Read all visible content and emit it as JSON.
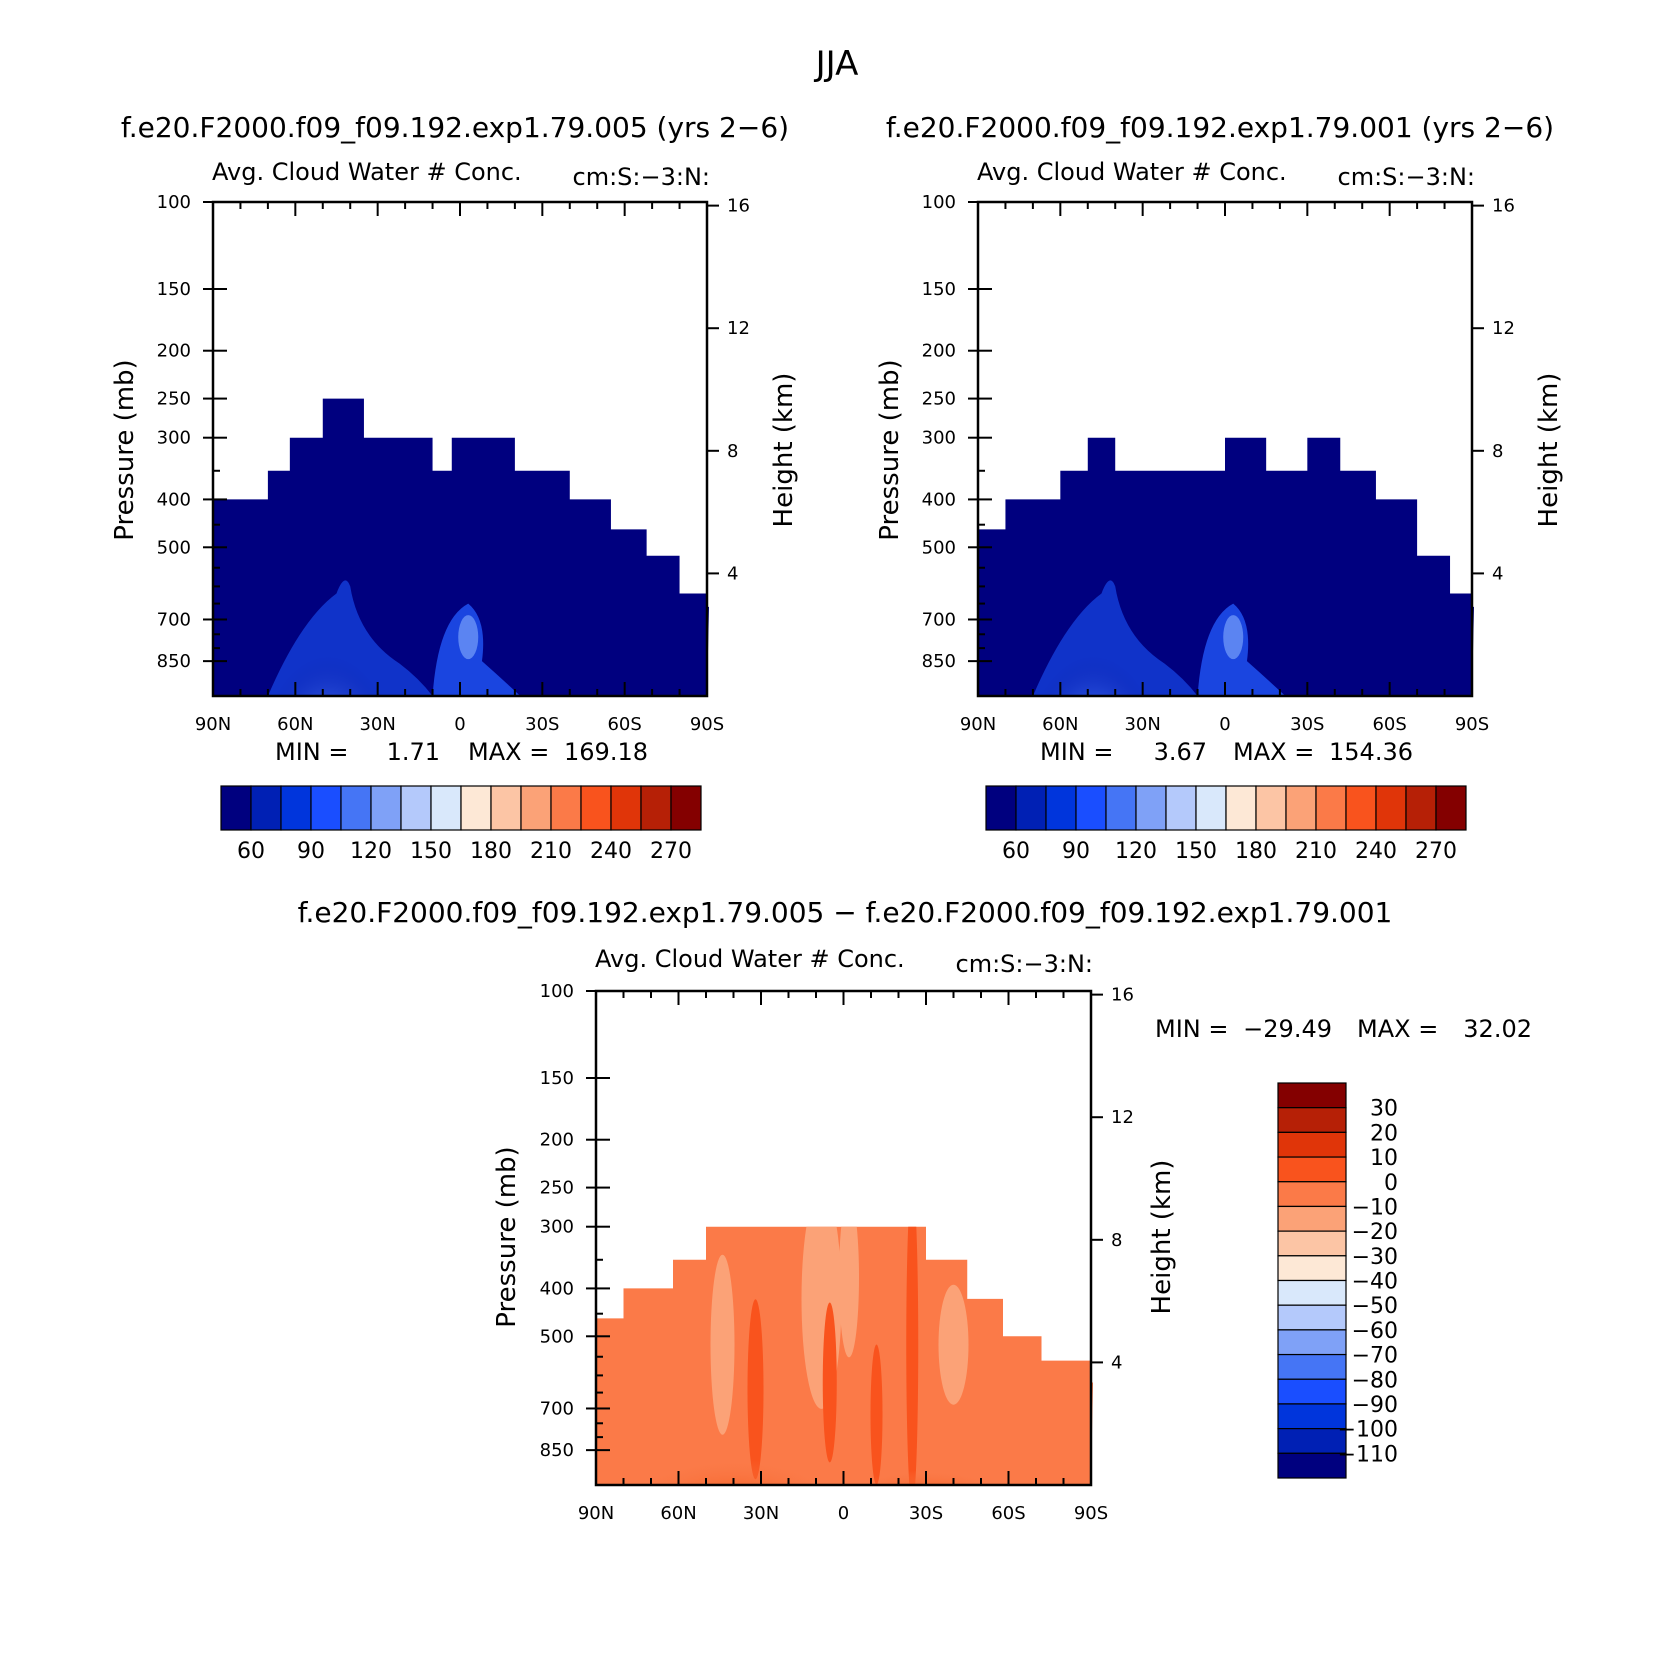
{
  "title": "JJA",
  "colors": {
    "seq": [
      "#00007f",
      "#0020b4",
      "#0035dc",
      "#1a4eff",
      "#4575f5",
      "#7fa1f7",
      "#b4c9fb",
      "#d9e8fb",
      "#fde8d6",
      "#fcc5a5",
      "#fba277",
      "#fb7a48",
      "#f9531d",
      "#e03509",
      "#b62006",
      "#840000"
    ],
    "diff": [
      "#00007f",
      "#0020b4",
      "#0035dc",
      "#1a4eff",
      "#4575f5",
      "#7fa1f7",
      "#b4c9fb",
      "#d9e8fb",
      "#fde8d6",
      "#fcc5a5",
      "#fba277",
      "#fb7a48",
      "#f9531d",
      "#e03509",
      "#b62006",
      "#840000"
    ]
  },
  "chart_data": [
    {
      "type": "heatmap",
      "panel_title": "f.e20.F2000.f09_f09.192.exp1.79.005 (yrs 2−6)",
      "left_label": "Avg. Cloud Water # Conc.",
      "right_label": "cm:S:−3:N:",
      "xlabel": "",
      "ylabel": "Pressure (mb)",
      "y2label": "Height (km)",
      "x_ticks": [
        "90N",
        "60N",
        "30N",
        "0",
        "30S",
        "60S",
        "90S"
      ],
      "y_ticks": [
        "100",
        "150",
        "200",
        "250",
        "300",
        "400",
        "500",
        "700",
        "850"
      ],
      "y2_ticks": [
        "16",
        "12",
        "8",
        "4"
      ],
      "min_label": "MIN =",
      "min_value": "1.71",
      "max_label": "MAX =",
      "max_value": "169.18",
      "colorbar_labels": [
        "60",
        "90",
        "120",
        "150",
        "180",
        "210",
        "240",
        "270"
      ],
      "data_top_pressure_by_lat": [
        {
          "lat": 90,
          "p": 400
        },
        {
          "lat": 75,
          "p": 400
        },
        {
          "lat": 70,
          "p": 350
        },
        {
          "lat": 62,
          "p": 300
        },
        {
          "lat": 50,
          "p": 250
        },
        {
          "lat": 35,
          "p": 300
        },
        {
          "lat": 10,
          "p": 350
        },
        {
          "lat": 3,
          "p": 300
        },
        {
          "lat": -20,
          "p": 350
        },
        {
          "lat": -40,
          "p": 400
        },
        {
          "lat": -55,
          "p": 460
        },
        {
          "lat": -68,
          "p": 520
        },
        {
          "lat": -80,
          "p": 620
        },
        {
          "lat": -90,
          "p": 660
        }
      ]
    },
    {
      "type": "heatmap",
      "panel_title": "f.e20.F2000.f09_f09.192.exp1.79.001 (yrs 2−6)",
      "left_label": "Avg. Cloud Water # Conc.",
      "right_label": "cm:S:−3:N:",
      "xlabel": "",
      "ylabel": "Pressure (mb)",
      "y2label": "Height (km)",
      "x_ticks": [
        "90N",
        "60N",
        "30N",
        "0",
        "30S",
        "60S",
        "90S"
      ],
      "y_ticks": [
        "100",
        "150",
        "200",
        "250",
        "300",
        "400",
        "500",
        "700",
        "850"
      ],
      "y2_ticks": [
        "16",
        "12",
        "8",
        "4"
      ],
      "min_label": "MIN =",
      "min_value": "3.67",
      "max_label": "MAX =",
      "max_value": "154.36",
      "colorbar_labels": [
        "60",
        "90",
        "120",
        "150",
        "180",
        "210",
        "240",
        "270"
      ],
      "data_top_pressure_by_lat": [
        {
          "lat": 90,
          "p": 460
        },
        {
          "lat": 80,
          "p": 400
        },
        {
          "lat": 60,
          "p": 350
        },
        {
          "lat": 50,
          "p": 300
        },
        {
          "lat": 40,
          "p": 350
        },
        {
          "lat": 0,
          "p": 300
        },
        {
          "lat": -15,
          "p": 350
        },
        {
          "lat": -30,
          "p": 300
        },
        {
          "lat": -42,
          "p": 350
        },
        {
          "lat": -55,
          "p": 400
        },
        {
          "lat": -70,
          "p": 520
        },
        {
          "lat": -82,
          "p": 620
        },
        {
          "lat": -90,
          "p": 660
        }
      ]
    },
    {
      "type": "heatmap",
      "panel_title": "f.e20.F2000.f09_f09.192.exp1.79.005 − f.e20.F2000.f09_f09.192.exp1.79.001",
      "left_label": "Avg. Cloud Water # Conc.",
      "right_label": "cm:S:−3:N:",
      "xlabel": "",
      "ylabel": "Pressure (mb)",
      "y2label": "Height (km)",
      "x_ticks": [
        "90N",
        "60N",
        "30N",
        "0",
        "30S",
        "60S",
        "90S"
      ],
      "y_ticks": [
        "100",
        "150",
        "200",
        "250",
        "300",
        "400",
        "500",
        "700",
        "850"
      ],
      "y2_ticks": [
        "16",
        "12",
        "8",
        "4"
      ],
      "min_label": "MIN =",
      "min_value": "−29.49",
      "max_label": "MAX =",
      "max_value": "32.02",
      "colorbar_labels": [
        "30",
        "20",
        "10",
        "0",
        "−10",
        "−20",
        "−30",
        "−40",
        "−50",
        "−60",
        "−70",
        "−80",
        "−90",
        "−100",
        "−110"
      ],
      "data_top_pressure_by_lat": [
        {
          "lat": 90,
          "p": 460
        },
        {
          "lat": 80,
          "p": 400
        },
        {
          "lat": 62,
          "p": 350
        },
        {
          "lat": 50,
          "p": 300
        },
        {
          "lat": 0,
          "p": 300
        },
        {
          "lat": -30,
          "p": 350
        },
        {
          "lat": -45,
          "p": 420
        },
        {
          "lat": -58,
          "p": 500
        },
        {
          "lat": -72,
          "p": 560
        },
        {
          "lat": -90,
          "p": 620
        }
      ]
    }
  ]
}
